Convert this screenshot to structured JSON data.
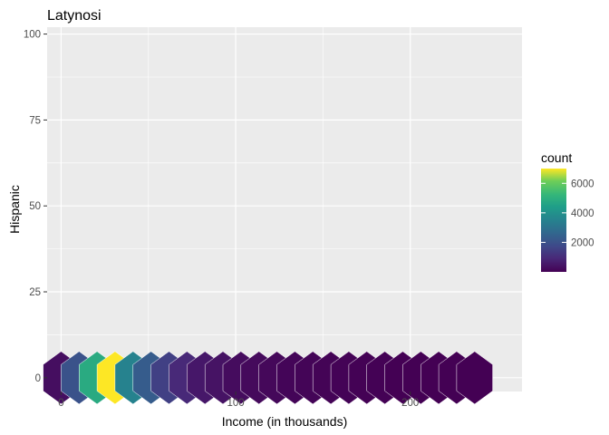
{
  "chart_data": {
    "type": "hexbin",
    "title": "Latynosi",
    "xlabel": "Income (in thousands)",
    "ylabel": "Hispanic",
    "xlim": [
      -8,
      264
    ],
    "ylim": [
      -4,
      102
    ],
    "x_ticks": [
      0,
      100,
      200
    ],
    "y_ticks": [
      0,
      25,
      50,
      75,
      100
    ],
    "grid": true,
    "legend": {
      "title": "count",
      "position": "right",
      "range": [
        0,
        7000
      ],
      "ticks": [
        2000,
        4000,
        6000
      ]
    },
    "hex_width": 20.6,
    "row_step": 11.5,
    "cells": [
      {
        "x": 0,
        "y": 0,
        "count": 300
      },
      {
        "x": 10.3,
        "y": 0,
        "count": 2000
      },
      {
        "x": 20.6,
        "y": 0,
        "count": 4800
      },
      {
        "x": 30.9,
        "y": 0,
        "count": 7000
      },
      {
        "x": 41.2,
        "y": 0,
        "count": 3500
      },
      {
        "x": 51.5,
        "y": 0,
        "count": 2300
      },
      {
        "x": 61.8,
        "y": 0,
        "count": 1500
      },
      {
        "x": 72.1,
        "y": 0,
        "count": 900
      },
      {
        "x": 82.4,
        "y": 0,
        "count": 500
      },
      {
        "x": 92.7,
        "y": 0,
        "count": 400
      },
      {
        "x": 103.0,
        "y": 0,
        "count": 250
      },
      {
        "x": 113.3,
        "y": 0,
        "count": 200
      },
      {
        "x": 123.6,
        "y": 0,
        "count": 150
      },
      {
        "x": 133.9,
        "y": 0,
        "count": 100
      },
      {
        "x": 144.2,
        "y": 0,
        "count": 80
      },
      {
        "x": 154.5,
        "y": 0,
        "count": 60
      },
      {
        "x": 164.8,
        "y": 0,
        "count": 40
      },
      {
        "x": 175.1,
        "y": 0,
        "count": 30
      },
      {
        "x": 185.4,
        "y": 0,
        "count": 20
      },
      {
        "x": 195.7,
        "y": 0,
        "count": 10
      },
      {
        "x": 206.0,
        "y": 0,
        "count": 10
      },
      {
        "x": 216.3,
        "y": 0,
        "count": 5
      },
      {
        "x": 226.6,
        "y": 0,
        "count": 5
      },
      {
        "x": 236.9,
        "y": 0,
        "count": 5
      }
    ]
  }
}
